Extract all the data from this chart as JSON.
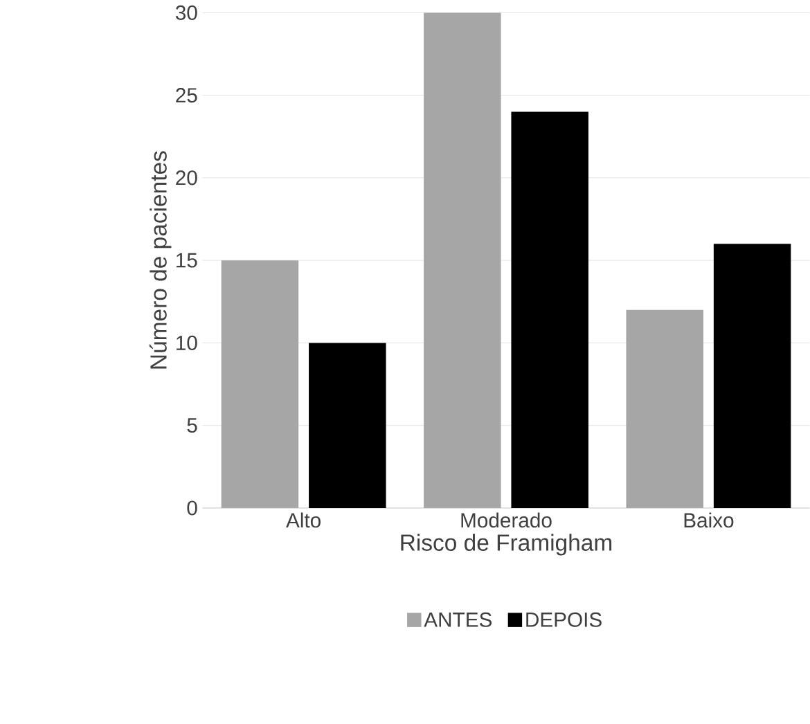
{
  "chart_data": {
    "type": "bar",
    "xlabel": "Risco de Framigham",
    "ylabel": "Número de pacientes",
    "categories": [
      "Alto",
      "Moderado",
      "Baixo"
    ],
    "series": [
      {
        "name": "ANTES",
        "color": "#a6a6a6",
        "values": [
          15,
          30,
          12
        ]
      },
      {
        "name": "DEPOIS",
        "color": "#000000",
        "values": [
          10,
          24,
          16
        ]
      }
    ],
    "ylim": [
      0,
      30
    ],
    "yticks": [
      0,
      5,
      10,
      15,
      20,
      25,
      30
    ],
    "grid": "y",
    "legend": "bottom"
  }
}
